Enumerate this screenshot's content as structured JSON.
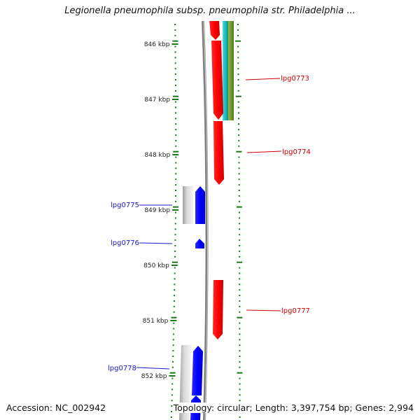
{
  "title": "Legionella pneumophila subsp. pneumophila str. Philadelphia ...",
  "footer": {
    "accession": "Accession: NC_002942",
    "summary": "Topology: circular; Length: 3,397,754 bp; Genes: 2,994"
  },
  "kbp_ticks": [
    {
      "kbp": 846,
      "label": "846 kbp"
    },
    {
      "kbp": 847,
      "label": "847 kbp"
    },
    {
      "kbp": 848,
      "label": "848 kbp"
    },
    {
      "kbp": 849,
      "label": "849 kbp"
    },
    {
      "kbp": 850,
      "label": "850 kbp"
    },
    {
      "kbp": 851,
      "label": "851 kbp"
    },
    {
      "kbp": 852,
      "label": "852 kbp"
    }
  ],
  "genes": [
    {
      "name": "lpg0773",
      "strand": "forward",
      "color": "#cc0000"
    },
    {
      "name": "lpg0774",
      "strand": "forward",
      "color": "#cc0000"
    },
    {
      "name": "lpg0775",
      "strand": "reverse",
      "color": "#1a1aff"
    },
    {
      "name": "lpg0776",
      "strand": "reverse",
      "color": "#1a1aff"
    },
    {
      "name": "lpg0777",
      "strand": "forward",
      "color": "#cc0000"
    },
    {
      "name": "lpg0778",
      "strand": "reverse",
      "color": "#1a1aff"
    }
  ],
  "colors": {
    "backbone": "#808080",
    "tick": "#1a7a1a",
    "forward_gene": "#ff0000",
    "reverse_gene": "#0000ff",
    "forward_label": "#cc0000",
    "reverse_label": "#1a1acc",
    "feature_cyan": "#22cccc",
    "feature_olive": "#88aa33"
  }
}
